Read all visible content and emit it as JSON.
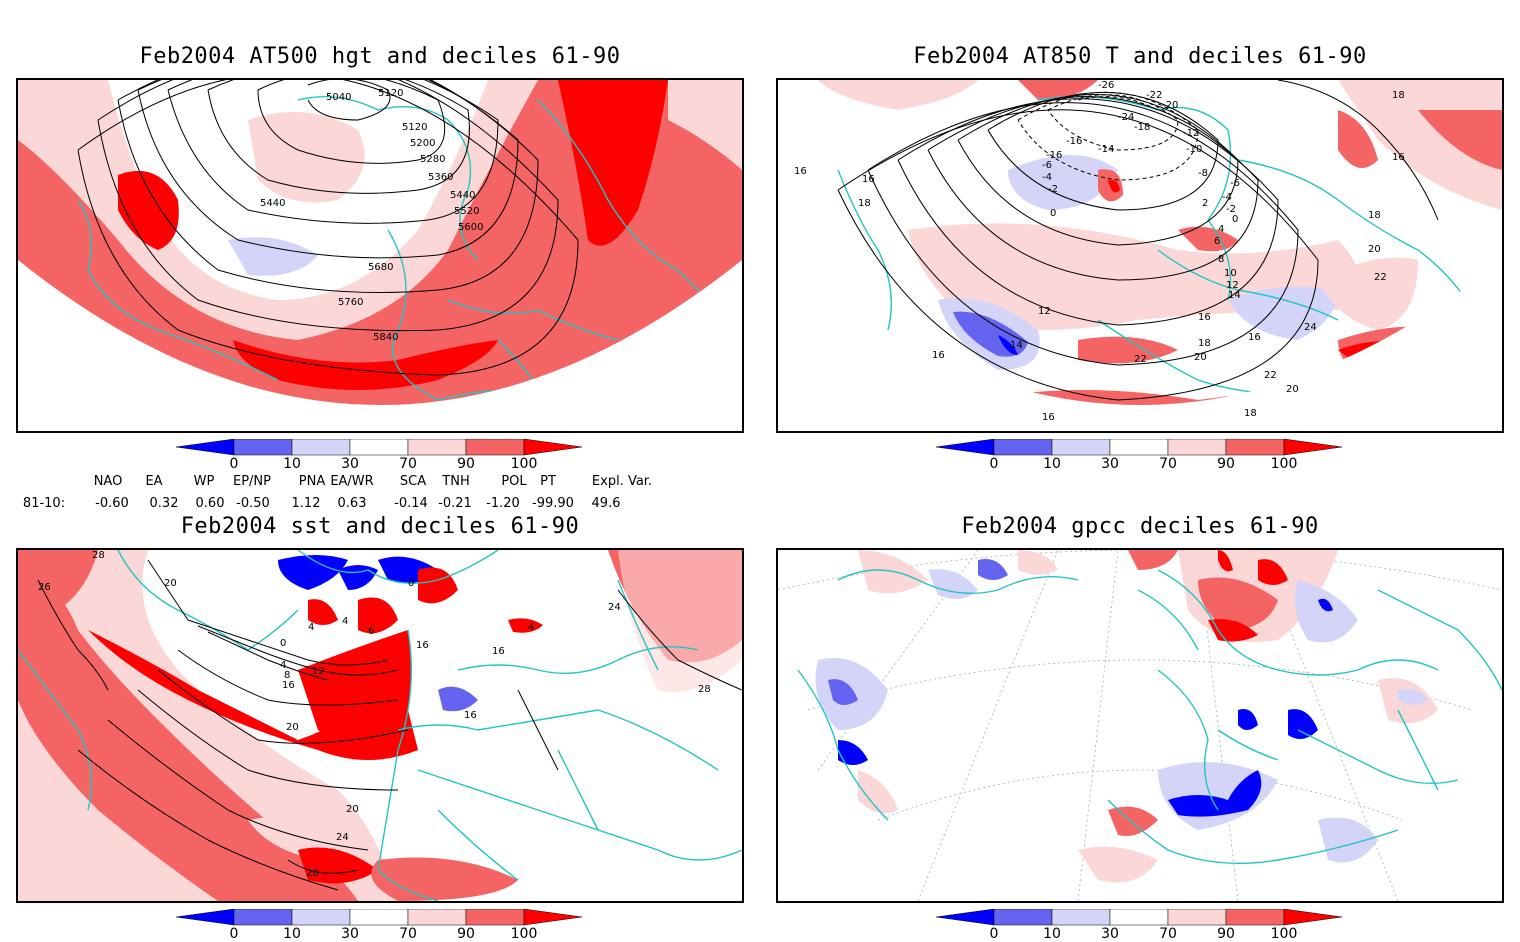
{
  "colors": {
    "deep_blue": "#0000ff",
    "mid_blue": "#6464f0",
    "light_blue": "#d4d4f8",
    "white": "#ffffff",
    "light_red": "#fcd7d7",
    "mid_red": "#f56464",
    "deep_red": "#ff0000",
    "coast": "#22c4c4",
    "contour": "#000000"
  },
  "colorbar": {
    "ticks": [
      "0",
      "10",
      "30",
      "70",
      "90",
      "100"
    ]
  },
  "panels": {
    "p1": {
      "title": "Feb2004 AT500 hgt and deciles 61-90",
      "contour_labels": [
        "5040",
        "5120",
        "5120",
        "5200",
        "5280",
        "5360",
        "5440",
        "5440",
        "5520",
        "5600",
        "5680",
        "5760",
        "5840"
      ]
    },
    "p2": {
      "title": "Feb2004 AT850 T and deciles 61-90",
      "contour_labels": [
        "-26",
        "-22",
        "-20",
        "-24",
        "-18",
        "-12",
        "-14",
        "-10",
        "-8",
        "-6",
        "-4",
        "-2",
        "0",
        "2",
        "4",
        "6",
        "8",
        "10",
        "12",
        "14",
        "16",
        "18",
        "20",
        "22",
        "24",
        "-16",
        "-16",
        "-6",
        "-4",
        "-2",
        "0",
        "18",
        "16",
        "16",
        "16",
        "18",
        "12",
        "14",
        "16",
        "18",
        "20",
        "22",
        "22",
        "20",
        "18",
        "16",
        "16"
      ]
    },
    "p3": {
      "title": "Feb2004 sst and deciles 61-90",
      "contour_labels": [
        "28",
        "26",
        "20",
        "0",
        "4",
        "4",
        "6",
        "0",
        "4",
        "8",
        "12",
        "16",
        "16",
        "20",
        "16",
        "16",
        "24",
        "28",
        "20",
        "24",
        "28",
        "4"
      ]
    },
    "p4": {
      "title": "Feb2004 gpcc deciles 61-90"
    }
  },
  "indices": {
    "headers": [
      "NAO",
      "EA",
      "WP",
      "EP/NP",
      "PNA",
      "EA/WR",
      "SCA",
      "TNH",
      "POL",
      "PT",
      "Expl. Var."
    ],
    "row_label": "81-10:",
    "values": [
      "-0.60",
      "0.32",
      "0.60",
      "-0.50",
      "1.12",
      "0.63",
      "-0.14",
      "-0.21",
      "-1.20",
      "-99.90",
      "49.6"
    ]
  }
}
